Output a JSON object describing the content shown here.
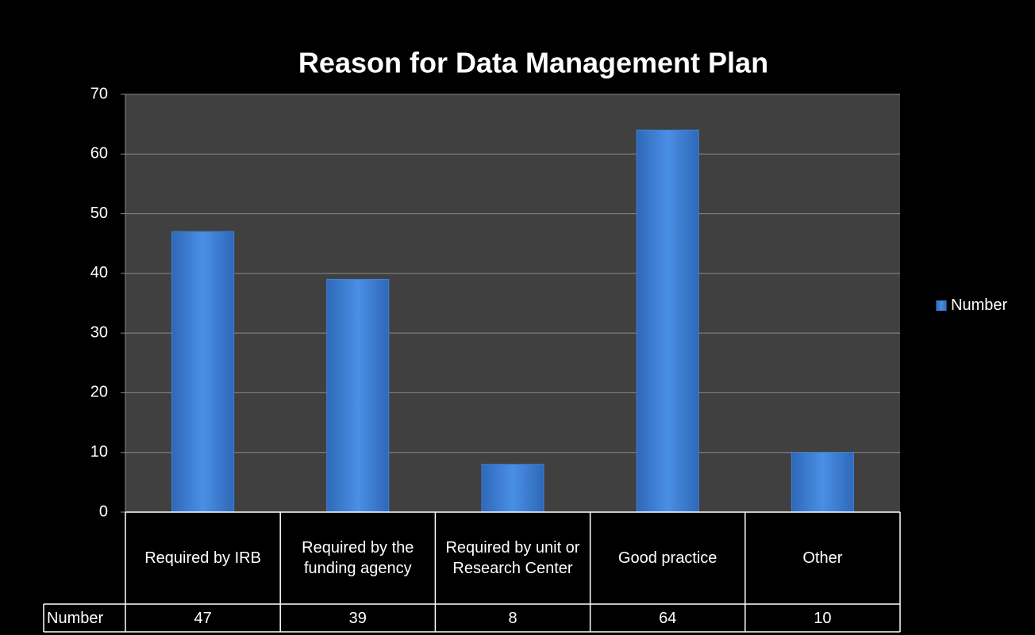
{
  "chart_data": {
    "type": "bar",
    "title": "Reason for  Data Management Plan",
    "categories": [
      "Required by IRB",
      "Required by the funding agency",
      "Required by unit or Research Center",
      "Good practice",
      "Other"
    ],
    "series": [
      {
        "name": "Number",
        "color": "#3f83d8",
        "values": [
          47,
          39,
          8,
          64,
          10
        ]
      }
    ],
    "ylim": [
      0,
      70
    ],
    "yticks": [
      0,
      10,
      20,
      30,
      40,
      50,
      60,
      70
    ],
    "grid": true,
    "legend": "right"
  }
}
